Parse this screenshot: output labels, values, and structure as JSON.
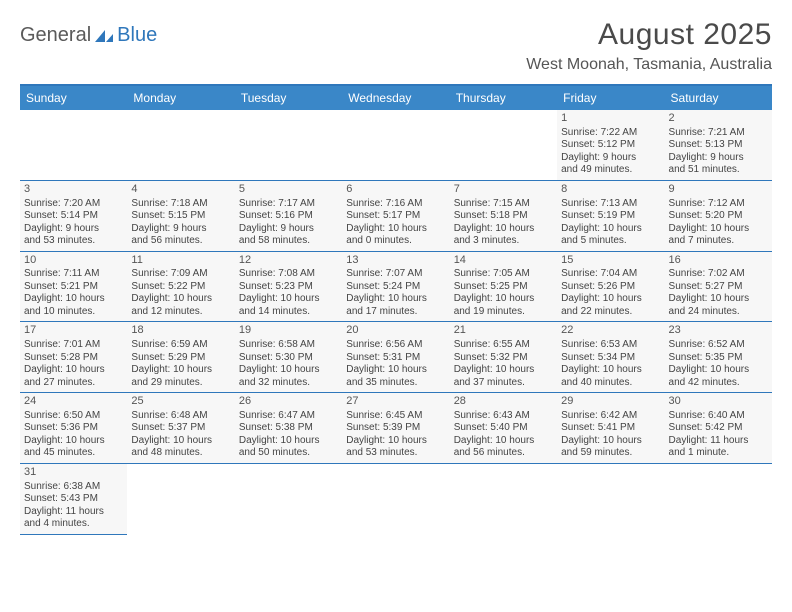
{
  "logo": {
    "general": "General",
    "blue": "Blue"
  },
  "title": "August 2025",
  "location": "West Moonah, Tasmania, Australia",
  "colors": {
    "header_bg": "#3a87c8",
    "border": "#2f77bb",
    "cell_bg": "#f7f7f7",
    "text": "#444444"
  },
  "day_headers": [
    "Sunday",
    "Monday",
    "Tuesday",
    "Wednesday",
    "Thursday",
    "Friday",
    "Saturday"
  ],
  "weeks": [
    [
      null,
      null,
      null,
      null,
      null,
      {
        "n": "1",
        "sr": "Sunrise: 7:22 AM",
        "ss": "Sunset: 5:12 PM",
        "d1": "Daylight: 9 hours",
        "d2": "and 49 minutes."
      },
      {
        "n": "2",
        "sr": "Sunrise: 7:21 AM",
        "ss": "Sunset: 5:13 PM",
        "d1": "Daylight: 9 hours",
        "d2": "and 51 minutes."
      }
    ],
    [
      {
        "n": "3",
        "sr": "Sunrise: 7:20 AM",
        "ss": "Sunset: 5:14 PM",
        "d1": "Daylight: 9 hours",
        "d2": "and 53 minutes."
      },
      {
        "n": "4",
        "sr": "Sunrise: 7:18 AM",
        "ss": "Sunset: 5:15 PM",
        "d1": "Daylight: 9 hours",
        "d2": "and 56 minutes."
      },
      {
        "n": "5",
        "sr": "Sunrise: 7:17 AM",
        "ss": "Sunset: 5:16 PM",
        "d1": "Daylight: 9 hours",
        "d2": "and 58 minutes."
      },
      {
        "n": "6",
        "sr": "Sunrise: 7:16 AM",
        "ss": "Sunset: 5:17 PM",
        "d1": "Daylight: 10 hours",
        "d2": "and 0 minutes."
      },
      {
        "n": "7",
        "sr": "Sunrise: 7:15 AM",
        "ss": "Sunset: 5:18 PM",
        "d1": "Daylight: 10 hours",
        "d2": "and 3 minutes."
      },
      {
        "n": "8",
        "sr": "Sunrise: 7:13 AM",
        "ss": "Sunset: 5:19 PM",
        "d1": "Daylight: 10 hours",
        "d2": "and 5 minutes."
      },
      {
        "n": "9",
        "sr": "Sunrise: 7:12 AM",
        "ss": "Sunset: 5:20 PM",
        "d1": "Daylight: 10 hours",
        "d2": "and 7 minutes."
      }
    ],
    [
      {
        "n": "10",
        "sr": "Sunrise: 7:11 AM",
        "ss": "Sunset: 5:21 PM",
        "d1": "Daylight: 10 hours",
        "d2": "and 10 minutes."
      },
      {
        "n": "11",
        "sr": "Sunrise: 7:09 AM",
        "ss": "Sunset: 5:22 PM",
        "d1": "Daylight: 10 hours",
        "d2": "and 12 minutes."
      },
      {
        "n": "12",
        "sr": "Sunrise: 7:08 AM",
        "ss": "Sunset: 5:23 PM",
        "d1": "Daylight: 10 hours",
        "d2": "and 14 minutes."
      },
      {
        "n": "13",
        "sr": "Sunrise: 7:07 AM",
        "ss": "Sunset: 5:24 PM",
        "d1": "Daylight: 10 hours",
        "d2": "and 17 minutes."
      },
      {
        "n": "14",
        "sr": "Sunrise: 7:05 AM",
        "ss": "Sunset: 5:25 PM",
        "d1": "Daylight: 10 hours",
        "d2": "and 19 minutes."
      },
      {
        "n": "15",
        "sr": "Sunrise: 7:04 AM",
        "ss": "Sunset: 5:26 PM",
        "d1": "Daylight: 10 hours",
        "d2": "and 22 minutes."
      },
      {
        "n": "16",
        "sr": "Sunrise: 7:02 AM",
        "ss": "Sunset: 5:27 PM",
        "d1": "Daylight: 10 hours",
        "d2": "and 24 minutes."
      }
    ],
    [
      {
        "n": "17",
        "sr": "Sunrise: 7:01 AM",
        "ss": "Sunset: 5:28 PM",
        "d1": "Daylight: 10 hours",
        "d2": "and 27 minutes."
      },
      {
        "n": "18",
        "sr": "Sunrise: 6:59 AM",
        "ss": "Sunset: 5:29 PM",
        "d1": "Daylight: 10 hours",
        "d2": "and 29 minutes."
      },
      {
        "n": "19",
        "sr": "Sunrise: 6:58 AM",
        "ss": "Sunset: 5:30 PM",
        "d1": "Daylight: 10 hours",
        "d2": "and 32 minutes."
      },
      {
        "n": "20",
        "sr": "Sunrise: 6:56 AM",
        "ss": "Sunset: 5:31 PM",
        "d1": "Daylight: 10 hours",
        "d2": "and 35 minutes."
      },
      {
        "n": "21",
        "sr": "Sunrise: 6:55 AM",
        "ss": "Sunset: 5:32 PM",
        "d1": "Daylight: 10 hours",
        "d2": "and 37 minutes."
      },
      {
        "n": "22",
        "sr": "Sunrise: 6:53 AM",
        "ss": "Sunset: 5:34 PM",
        "d1": "Daylight: 10 hours",
        "d2": "and 40 minutes."
      },
      {
        "n": "23",
        "sr": "Sunrise: 6:52 AM",
        "ss": "Sunset: 5:35 PM",
        "d1": "Daylight: 10 hours",
        "d2": "and 42 minutes."
      }
    ],
    [
      {
        "n": "24",
        "sr": "Sunrise: 6:50 AM",
        "ss": "Sunset: 5:36 PM",
        "d1": "Daylight: 10 hours",
        "d2": "and 45 minutes."
      },
      {
        "n": "25",
        "sr": "Sunrise: 6:48 AM",
        "ss": "Sunset: 5:37 PM",
        "d1": "Daylight: 10 hours",
        "d2": "and 48 minutes."
      },
      {
        "n": "26",
        "sr": "Sunrise: 6:47 AM",
        "ss": "Sunset: 5:38 PM",
        "d1": "Daylight: 10 hours",
        "d2": "and 50 minutes."
      },
      {
        "n": "27",
        "sr": "Sunrise: 6:45 AM",
        "ss": "Sunset: 5:39 PM",
        "d1": "Daylight: 10 hours",
        "d2": "and 53 minutes."
      },
      {
        "n": "28",
        "sr": "Sunrise: 6:43 AM",
        "ss": "Sunset: 5:40 PM",
        "d1": "Daylight: 10 hours",
        "d2": "and 56 minutes."
      },
      {
        "n": "29",
        "sr": "Sunrise: 6:42 AM",
        "ss": "Sunset: 5:41 PM",
        "d1": "Daylight: 10 hours",
        "d2": "and 59 minutes."
      },
      {
        "n": "30",
        "sr": "Sunrise: 6:40 AM",
        "ss": "Sunset: 5:42 PM",
        "d1": "Daylight: 11 hours",
        "d2": "and 1 minute."
      }
    ],
    [
      {
        "n": "31",
        "sr": "Sunrise: 6:38 AM",
        "ss": "Sunset: 5:43 PM",
        "d1": "Daylight: 11 hours",
        "d2": "and 4 minutes."
      },
      null,
      null,
      null,
      null,
      null,
      null
    ]
  ]
}
